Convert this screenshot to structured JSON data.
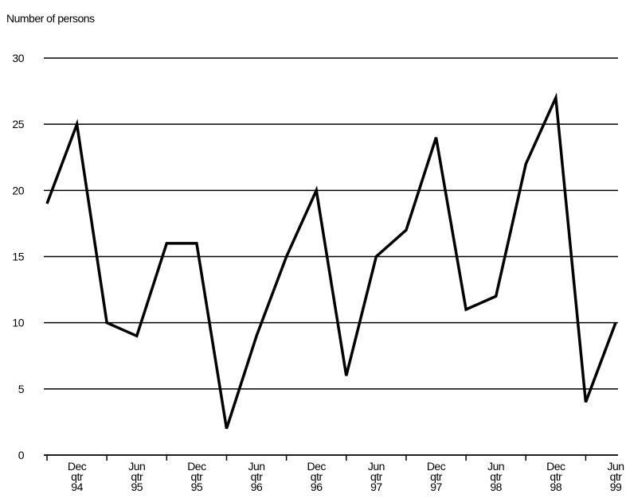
{
  "chart_data": {
    "type": "line",
    "y_axis_label": "Number of persons",
    "categories": [
      null,
      [
        "Dec",
        "qtr",
        "94"
      ],
      null,
      [
        "Jun",
        "qtr",
        "95"
      ],
      null,
      [
        "Dec",
        "qtr",
        "95"
      ],
      null,
      [
        "Jun",
        "qtr",
        "96"
      ],
      null,
      [
        "Dec",
        "qtr",
        "96"
      ],
      null,
      [
        "Jun",
        "qtr",
        "97"
      ],
      null,
      [
        "Dec",
        "qtr",
        "97"
      ],
      null,
      [
        "Jun",
        "qtr",
        "98"
      ],
      null,
      [
        "Dec",
        "qtr",
        "98"
      ],
      null,
      [
        "Jun",
        "qtr",
        "99"
      ]
    ],
    "values": [
      19,
      25,
      10,
      9,
      16,
      16,
      2,
      9,
      15,
      20,
      6,
      15,
      17,
      24,
      11,
      12,
      22,
      27,
      4,
      10
    ],
    "color": "#000000",
    "ylim": [
      0,
      30
    ],
    "yticks": [
      0,
      5,
      10,
      15,
      20,
      25,
      30
    ],
    "grid": true
  }
}
